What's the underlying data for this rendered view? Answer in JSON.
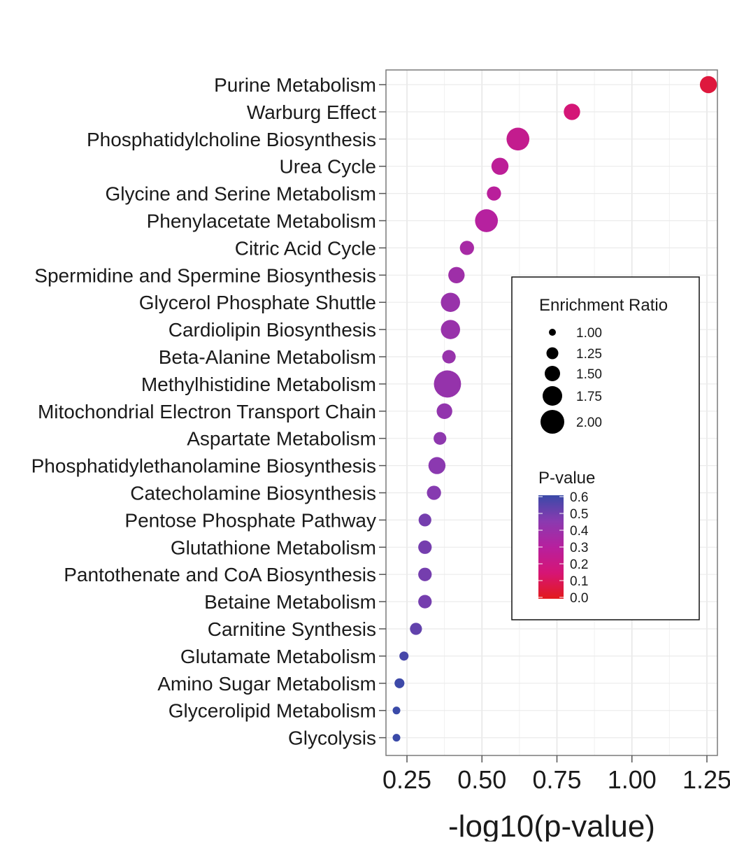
{
  "chart_data": {
    "type": "scatter",
    "xlabel": "-log10(p-value)",
    "xlim": [
      0.18,
      1.285
    ],
    "xticks": [
      "0.25",
      "0.50",
      "0.75",
      "1.00",
      "1.25"
    ],
    "xtick_values": [
      0.25,
      0.5,
      0.75,
      1.0,
      1.25
    ],
    "grid": true,
    "highlight_color": "#e31a1c",
    "highlighted_category": "Purine Metabolism",
    "points": [
      {
        "label": "Purine Metabolism",
        "x": 1.255,
        "ratio": 1.6,
        "p": 0.056
      },
      {
        "label": "Warburg Effect",
        "x": 0.8,
        "ratio": 1.55,
        "p": 0.158
      },
      {
        "label": "Phosphatidylcholine Biosynthesis",
        "x": 0.62,
        "ratio": 2.0,
        "p": 0.24
      },
      {
        "label": "Urea Cycle",
        "x": 0.56,
        "ratio": 1.6,
        "p": 0.275
      },
      {
        "label": "Glycine and Serine Metabolism",
        "x": 0.54,
        "ratio": 1.4,
        "p": 0.288
      },
      {
        "label": "Phenylacetate Metabolism",
        "x": 0.515,
        "ratio": 2.0,
        "p": 0.305
      },
      {
        "label": "Citric Acid Cycle",
        "x": 0.45,
        "ratio": 1.4,
        "p": 0.355
      },
      {
        "label": "Spermidine and Spermine Biosynthesis",
        "x": 0.415,
        "ratio": 1.55,
        "p": 0.385
      },
      {
        "label": "Glycerol Phosphate Shuttle",
        "x": 0.395,
        "ratio": 1.75,
        "p": 0.403
      },
      {
        "label": "Cardiolipin Biosynthesis",
        "x": 0.395,
        "ratio": 1.75,
        "p": 0.403
      },
      {
        "label": "Beta-Alanine Metabolism",
        "x": 0.39,
        "ratio": 1.35,
        "p": 0.407
      },
      {
        "label": "Methylhistidine Metabolism",
        "x": 0.385,
        "ratio": 2.3,
        "p": 0.412
      },
      {
        "label": "Mitochondrial Electron Transport Chain",
        "x": 0.375,
        "ratio": 1.5,
        "p": 0.422
      },
      {
        "label": "Aspartate Metabolism",
        "x": 0.36,
        "ratio": 1.3,
        "p": 0.436
      },
      {
        "label": "Phosphatidylethanolamine Biosynthesis",
        "x": 0.35,
        "ratio": 1.6,
        "p": 0.447
      },
      {
        "label": "Catecholamine Biosynthesis",
        "x": 0.34,
        "ratio": 1.4,
        "p": 0.457
      },
      {
        "label": "Pentose Phosphate Pathway",
        "x": 0.31,
        "ratio": 1.3,
        "p": 0.49
      },
      {
        "label": "Glutathione Metabolism",
        "x": 0.31,
        "ratio": 1.35,
        "p": 0.49
      },
      {
        "label": "Pantothenate and CoA Biosynthesis",
        "x": 0.31,
        "ratio": 1.35,
        "p": 0.49
      },
      {
        "label": "Betaine Metabolism",
        "x": 0.31,
        "ratio": 1.35,
        "p": 0.49
      },
      {
        "label": "Carnitine Synthesis",
        "x": 0.28,
        "ratio": 1.25,
        "p": 0.525
      },
      {
        "label": "Glutamate Metabolism",
        "x": 0.24,
        "ratio": 1.05,
        "p": 0.575
      },
      {
        "label": "Amino Sugar Metabolism",
        "x": 0.225,
        "ratio": 1.1,
        "p": 0.595
      },
      {
        "label": "Glycerolipid Metabolism",
        "x": 0.215,
        "ratio": 0.95,
        "p": 0.61
      },
      {
        "label": "Glycolysis",
        "x": 0.215,
        "ratio": 0.95,
        "p": 0.61
      }
    ],
    "legend_size": {
      "title": "Enrichment Ratio",
      "entries": [
        {
          "label": "1.00",
          "value": 1.0
        },
        {
          "label": "1.25",
          "value": 1.25
        },
        {
          "label": "1.50",
          "value": 1.5
        },
        {
          "label": "1.75",
          "value": 1.75
        },
        {
          "label": "2.00",
          "value": 2.0
        }
      ]
    },
    "legend_color": {
      "title": "P-value",
      "ticks": [
        "0.6",
        "0.5",
        "0.4",
        "0.3",
        "0.2",
        "0.1",
        "0.0"
      ],
      "range": [
        0.0,
        0.6
      ],
      "stops": [
        "#e31a1c",
        "#d61575",
        "#b7209e",
        "#8a3ab0",
        "#3a4aa8"
      ]
    },
    "legend_placement": "center-right, inside plot"
  }
}
